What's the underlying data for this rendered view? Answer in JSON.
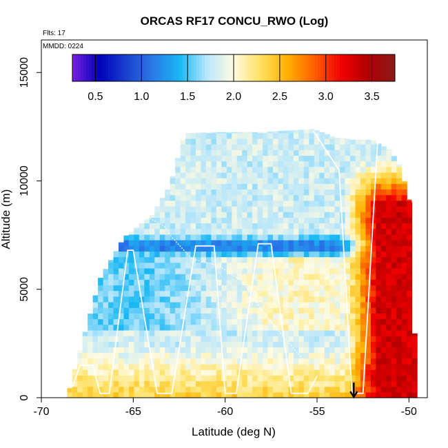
{
  "chart_data": {
    "type": "heatmap",
    "title": "ORCAS RF17 CONCU_RWO (Log)",
    "subtitle_flights": "Flts: 17",
    "subtitle_date": "MMDD: 0224",
    "xlabel": "Latitude (deg N)",
    "ylabel": "Altitude (m)",
    "xlim": [
      -70,
      -49
    ],
    "ylim": [
      0,
      16500
    ],
    "x_ticks": [
      -70,
      -65,
      -60,
      -55,
      -50
    ],
    "x_tick_labels": [
      "-70",
      "-65",
      "-60",
      "-55",
      "-50"
    ],
    "y_ticks": [
      0,
      5000,
      10000,
      15000
    ],
    "y_tick_labels": [
      "0",
      "5000",
      "10000",
      "15000"
    ],
    "colorbar": {
      "range": [
        0.25,
        3.75
      ],
      "ticks": [
        0.5,
        1.0,
        1.5,
        2.0,
        2.5,
        3.0,
        3.5
      ],
      "tick_labels": [
        "0.5",
        "1.0",
        "1.5",
        "2.0",
        "2.5",
        "3.0",
        "3.5"
      ],
      "colors": [
        "#7a20e0",
        "#0000b8",
        "#1a40d0",
        "#2a7ae8",
        "#18b8f4",
        "#b8e6fb",
        "#fffbe0",
        "#ffe060",
        "#ffb000",
        "#ff6000",
        "#f00000",
        "#b00000",
        "#8a1a1a"
      ]
    },
    "envelope": {
      "lat": [
        -68.6,
        -67.8,
        -66.8,
        -65.5,
        -64.0,
        -63.0,
        -62.2,
        -61.0,
        -60.0,
        -58.0,
        -56.0,
        -55.2,
        -54.0,
        -53.0,
        -52.0,
        -51.0,
        -50.5,
        -49.9,
        -49.6
      ],
      "top_alt": [
        0,
        2500,
        5500,
        7400,
        8400,
        9800,
        12200,
        12250,
        12250,
        12250,
        12350,
        12400,
        12000,
        11900,
        11900,
        11400,
        10700,
        8900,
        0
      ]
    },
    "flight_track": {
      "lat": [
        -68.3,
        -67.9,
        -67.2,
        -66.8,
        -66.3,
        -65.3,
        -65.0,
        -63.7,
        -62.9,
        -61.6,
        -60.6,
        -60.0,
        -59.4,
        -58.2,
        -57.9,
        -57.5,
        -56.4,
        -55.5,
        -55.0,
        -55.5,
        -56.2,
        -57.8,
        -59.1,
        -60.4,
        -61.8,
        -62.9,
        -63.3,
        -64.8,
        -65.9,
        -66.5,
        -55.2,
        -53.8,
        -53.1,
        -52.5,
        -51.7,
        -51.0,
        -50.5,
        -50.1,
        -49.8
      ],
      "alt": [
        500,
        1500,
        1500,
        200,
        200,
        6800,
        6800,
        200,
        200,
        7000,
        7000,
        200,
        200,
        7100,
        7100,
        7100,
        200,
        200,
        1000,
        1500,
        2200,
        3800,
        5400,
        6100,
        6400,
        7400,
        7900,
        8600,
        8900,
        9200,
        12300,
        10500,
        200,
        200,
        11900,
        11950,
        11950,
        10300,
        9000
      ],
      "segment_breaks": [
        19,
        30
      ]
    },
    "marker": {
      "lat": -53.0,
      "alt": 0,
      "symbol": "down-arrow"
    },
    "field_summary": {
      "low_altitude_band_m": [
        0,
        2500
      ],
      "low_altitude_value": 2.4,
      "mid_band_m": [
        6400,
        7600
      ],
      "mid_band_value": 0.9,
      "upper_value": 1.8,
      "north_high_region_lat": [
        -53.5,
        -49.5
      ],
      "north_high_region_value": 3.3
    }
  }
}
